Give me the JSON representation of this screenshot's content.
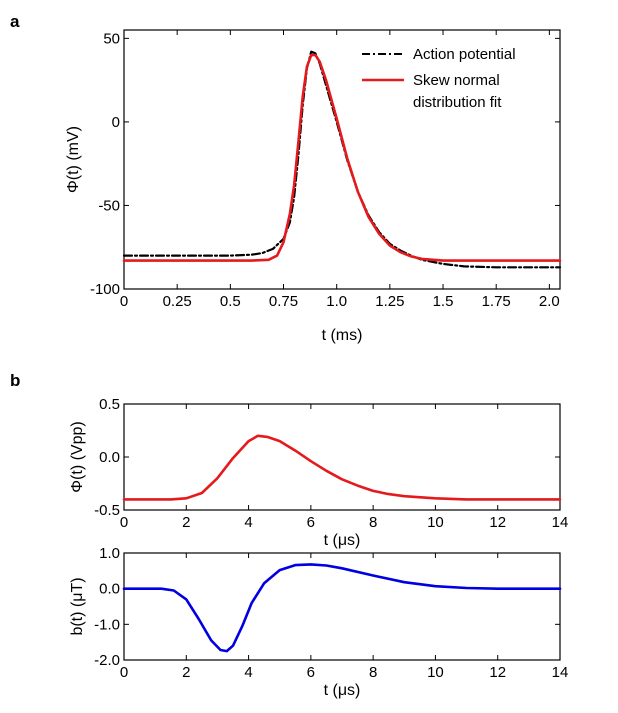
{
  "panel_labels": {
    "a": "a",
    "b": "b"
  },
  "chart_data": [
    {
      "id": "a",
      "type": "line",
      "xlabel": "t (ms)",
      "ylabel": "Φ(t) (mV)",
      "xlim": [
        0,
        2.05
      ],
      "ylim": [
        -100,
        55
      ],
      "xticks": [
        0,
        0.25,
        0.5,
        0.75,
        1.0,
        1.25,
        1.5,
        1.75,
        2.0
      ],
      "xtick_labels": [
        "0",
        "0.25",
        "0.5",
        "0.75",
        "1.0",
        "1.25",
        "1.5",
        "1.75",
        "2.0"
      ],
      "yticks": [
        50,
        0,
        -50,
        -100
      ],
      "ytick_labels": [
        "50",
        "0",
        "-50",
        "-100"
      ],
      "legend": {
        "position": "top-right",
        "entries": [
          "Action potential",
          "Skew normal",
          "distribution fit"
        ]
      },
      "series": [
        {
          "name": "Action potential",
          "style": "dashdot",
          "color": "#000000",
          "x": [
            0,
            0.5,
            0.6,
            0.65,
            0.7,
            0.75,
            0.78,
            0.8,
            0.82,
            0.84,
            0.86,
            0.88,
            0.9,
            0.92,
            0.95,
            1.0,
            1.05,
            1.1,
            1.15,
            1.2,
            1.25,
            1.3,
            1.35,
            1.4,
            1.5,
            1.6,
            1.75,
            2.0,
            2.05
          ],
          "y": [
            -80,
            -80,
            -79.5,
            -78.5,
            -76,
            -70,
            -60,
            -45,
            -20,
            10,
            32,
            42,
            41,
            35,
            22,
            0,
            -23,
            -42,
            -56,
            -66,
            -73,
            -77,
            -80,
            -82.5,
            -85,
            -86.5,
            -87,
            -87,
            -87
          ]
        },
        {
          "name": "Skew normal distribution fit",
          "style": "solid",
          "color": "#e41a1c",
          "x": [
            0,
            0.6,
            0.68,
            0.72,
            0.75,
            0.78,
            0.8,
            0.82,
            0.84,
            0.86,
            0.88,
            0.9,
            0.92,
            0.95,
            1.0,
            1.05,
            1.1,
            1.15,
            1.2,
            1.25,
            1.3,
            1.35,
            1.4,
            1.5,
            2.05
          ],
          "y": [
            -83,
            -83,
            -82.5,
            -80,
            -72,
            -55,
            -38,
            -12,
            15,
            33,
            40,
            40,
            36,
            25,
            2,
            -22,
            -42,
            -57,
            -67,
            -74,
            -78,
            -80.5,
            -82,
            -83,
            -83
          ]
        }
      ]
    },
    {
      "id": "b-top",
      "type": "line",
      "xlabel": "t (μs)",
      "ylabel": "Φ(t) (Vpp)",
      "xlim": [
        0,
        14
      ],
      "ylim": [
        -0.5,
        0.5
      ],
      "xticks": [
        0,
        2,
        4,
        6,
        8,
        10,
        12,
        14
      ],
      "xtick_labels": [
        "0",
        "2",
        "4",
        "6",
        "8",
        "10",
        "12",
        "14"
      ],
      "yticks": [
        0.5,
        0.0,
        -0.5
      ],
      "ytick_labels": [
        "0.5",
        "0.0",
        "-0.5"
      ],
      "series": [
        {
          "name": "Φ(t)",
          "style": "solid",
          "color": "#e41a1c",
          "x": [
            0,
            1.5,
            2,
            2.5,
            3,
            3.5,
            4,
            4.3,
            4.6,
            5,
            5.5,
            6,
            6.5,
            7,
            7.5,
            8,
            8.5,
            9,
            10,
            11,
            12,
            14
          ],
          "y": [
            -0.4,
            -0.4,
            -0.39,
            -0.34,
            -0.2,
            -0.01,
            0.15,
            0.2,
            0.19,
            0.15,
            0.06,
            -0.04,
            -0.13,
            -0.21,
            -0.27,
            -0.32,
            -0.35,
            -0.37,
            -0.39,
            -0.4,
            -0.4,
            -0.4
          ]
        }
      ]
    },
    {
      "id": "b-bottom",
      "type": "line",
      "xlabel": "t (μs)",
      "ylabel": "b(t) (μT)",
      "xlim": [
        0,
        14
      ],
      "ylim": [
        -2.0,
        1.0
      ],
      "xticks": [
        0,
        2,
        4,
        6,
        8,
        10,
        12,
        14
      ],
      "xtick_labels": [
        "0",
        "2",
        "4",
        "6",
        "8",
        "10",
        "12",
        "14"
      ],
      "yticks": [
        1.0,
        0.0,
        -1.0,
        -2.0
      ],
      "ytick_labels": [
        "1.0",
        "0.0",
        "-1.0",
        "-2.0"
      ],
      "series": [
        {
          "name": "b(t)",
          "style": "solid",
          "color": "#0000e0",
          "x": [
            0,
            1.2,
            1.6,
            2,
            2.4,
            2.8,
            3.1,
            3.3,
            3.5,
            3.8,
            4.1,
            4.5,
            5,
            5.5,
            6,
            6.5,
            7,
            8,
            9,
            10,
            11,
            12,
            14
          ],
          "y": [
            0,
            0,
            -0.05,
            -0.3,
            -0.85,
            -1.45,
            -1.72,
            -1.75,
            -1.6,
            -1.05,
            -0.4,
            0.15,
            0.52,
            0.66,
            0.68,
            0.65,
            0.57,
            0.37,
            0.18,
            0.07,
            0.02,
            0.0,
            0.0
          ]
        }
      ]
    }
  ]
}
